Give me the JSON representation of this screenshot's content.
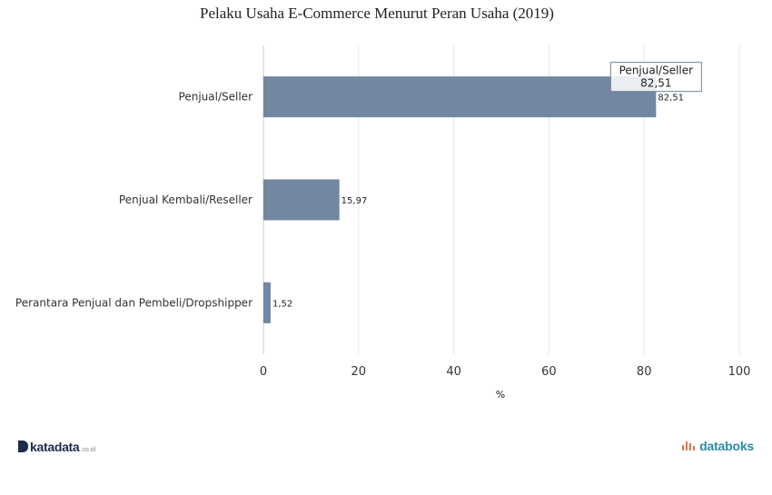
{
  "chart_data": {
    "type": "bar",
    "orientation": "horizontal",
    "title": "Pelaku Usaha E-Commerce Menurut Peran Usaha (2019)",
    "xlabel": "%",
    "ylabel": "",
    "xlim": [
      0,
      100
    ],
    "ticks": [
      0,
      20,
      40,
      60,
      80,
      100
    ],
    "grid": true,
    "categories": [
      "Penjual/Seller",
      "Penjual Kembali/Reseller",
      "Perantara Penjual dan Pembeli/Dropshipper"
    ],
    "values": [
      82.51,
      15.97,
      1.52
    ],
    "value_labels": [
      "82,51",
      "15,97",
      "1,52"
    ],
    "bar_color": "#7287a1",
    "tooltip": {
      "category": "Penjual/Seller",
      "value_label": "82,51"
    }
  },
  "brand": {
    "left_logo": "katadata",
    "left_logo_tld": ".co.id",
    "right_logo": "databoks",
    "accent_left": "#1c2b4a",
    "accent_right": "#2b8aa8",
    "right_mark_color": "#e8734a"
  }
}
